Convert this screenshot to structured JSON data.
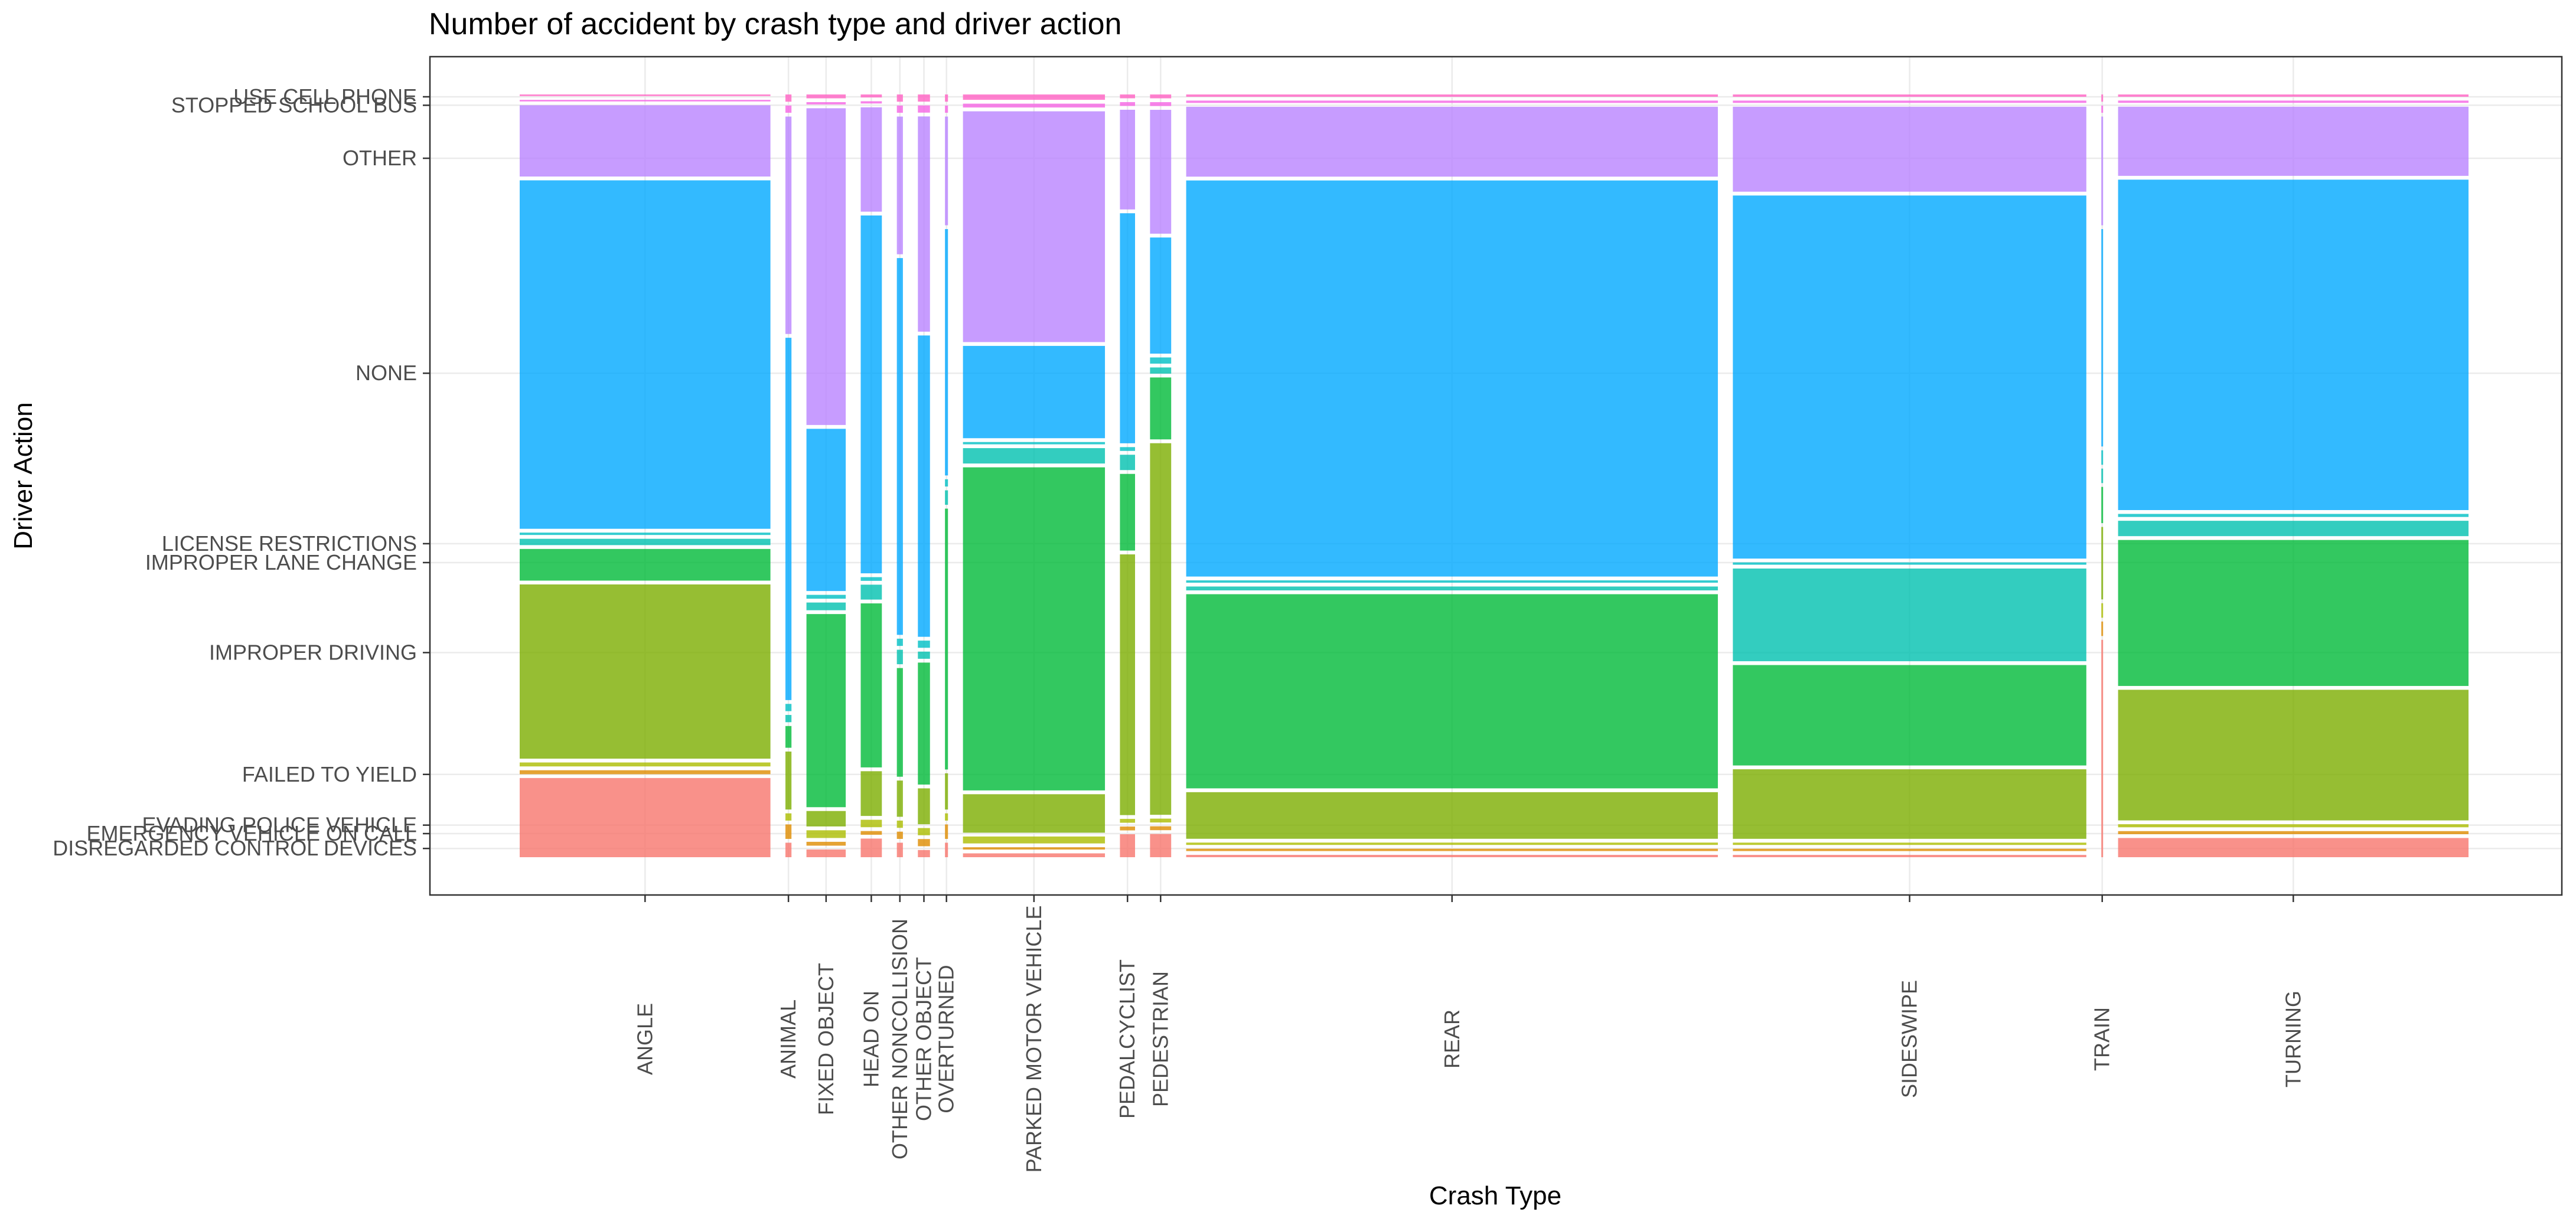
{
  "chart_data": {
    "type": "mosaic",
    "title": "Number of accident by crash type and driver action",
    "xlabel": "Crash Type",
    "ylabel": "Driver Action",
    "grid": true,
    "legend": "none",
    "colors": {
      "USE CELL PHONE": "#ff61c3",
      "STOPPED SCHOOL BUS": "#f564e3",
      "OTHER": "#b983ff",
      "NONE": "#00a9ff",
      "LICENSE RESTRICTIONS": "#00bfc4",
      "IMPROPER LANE CHANGE": "#00c0af",
      "IMPROPER DRIVING": "#00ba38",
      "FAILED TO YIELD": "#7cae00",
      "EVADING POLICE VEHICLE": "#abbd00",
      "EMERGENCY VEHICLE ON CALL": "#de8c00",
      "DISREGARDED CONTROL DEVICES": "#f8766d"
    },
    "y_categories": [
      "DISREGARDED CONTROL DEVICES",
      "EMERGENCY VEHICLE ON CALL",
      "EVADING POLICE VEHICLE",
      "FAILED TO YIELD",
      "IMPROPER DRIVING",
      "IMPROPER LANE CHANGE",
      "LICENSE RESTRICTIONS",
      "NONE",
      "OTHER",
      "STOPPED SCHOOL BUS",
      "USE CELL PHONE"
    ],
    "columns": [
      {
        "name": "ANGLE",
        "share": 0.083,
        "shares": [
          0.1,
          0.005,
          0.005,
          0.22,
          0.04,
          0.008,
          0.003,
          0.44,
          0.09,
          0.002,
          0.002
        ]
      },
      {
        "name": "ANIMAL",
        "share": 0.002,
        "shares": [
          0.02,
          0.02,
          0.01,
          0.08,
          0.03,
          0.01,
          0.01,
          0.5,
          0.3,
          0.01,
          0.01
        ]
      },
      {
        "name": "FIXED OBJECT",
        "share": 0.013,
        "shares": [
          0.01,
          0.005,
          0.01,
          0.02,
          0.25,
          0.01,
          0.005,
          0.21,
          0.41,
          0.003,
          0.005
        ]
      },
      {
        "name": "HEAD ON",
        "share": 0.007,
        "shares": [
          0.025,
          0.005,
          0.01,
          0.06,
          0.22,
          0.02,
          0.005,
          0.48,
          0.14,
          0.003,
          0.004
        ]
      },
      {
        "name": "OTHER NONCOLLISION",
        "share": 0.002,
        "shares": [
          0.02,
          0.01,
          0.01,
          0.05,
          0.15,
          0.02,
          0.01,
          0.52,
          0.19,
          0.01,
          0.01
        ]
      },
      {
        "name": "OTHER OBJECT",
        "share": 0.004,
        "shares": [
          0.01,
          0.01,
          0.01,
          0.05,
          0.17,
          0.01,
          0.01,
          0.42,
          0.3,
          0.01,
          0.01
        ]
      },
      {
        "name": "OVERTURNED",
        "share": 0.001,
        "shares": [
          0.02,
          0.02,
          0.01,
          0.05,
          0.36,
          0.02,
          0.01,
          0.34,
          0.15,
          0.01,
          0.01
        ]
      },
      {
        "name": "PARKED MOTOR VEHICLE",
        "share": 0.047,
        "shares": [
          0.005,
          0.003,
          0.009,
          0.05,
          0.42,
          0.02,
          0.003,
          0.12,
          0.3,
          0.005,
          0.007
        ]
      },
      {
        "name": "PEDALCYCLIST",
        "share": 0.005,
        "shares": [
          0.03,
          0.005,
          0.005,
          0.34,
          0.1,
          0.02,
          0.005,
          0.3,
          0.13,
          0.005,
          0.005
        ]
      },
      {
        "name": "PEDESTRIAN",
        "share": 0.007,
        "shares": [
          0.03,
          0.005,
          0.005,
          0.48,
          0.08,
          0.008,
          0.008,
          0.15,
          0.16,
          0.005,
          0.005
        ]
      },
      {
        "name": "REAR",
        "share": 0.176,
        "shares": [
          0.003,
          0.003,
          0.003,
          0.06,
          0.25,
          0.005,
          0.003,
          0.51,
          0.09,
          0.003,
          0.003
        ]
      },
      {
        "name": "SIDESWIPE",
        "share": 0.117,
        "shares": [
          0.003,
          0.003,
          0.003,
          0.09,
          0.13,
          0.12,
          0.003,
          0.47,
          0.11,
          0.003,
          0.003
        ]
      },
      {
        "name": "TRAIN",
        "share": 0.0005,
        "shares": [
          0.3,
          0.02,
          0.02,
          0.1,
          0.05,
          0.02,
          0.02,
          0.3,
          0.15,
          0.01,
          0.01
        ]
      },
      {
        "name": "TURNING",
        "share": 0.116,
        "shares": [
          0.025,
          0.004,
          0.004,
          0.17,
          0.19,
          0.02,
          0.004,
          0.43,
          0.09,
          0.003,
          0.003
        ]
      }
    ]
  }
}
